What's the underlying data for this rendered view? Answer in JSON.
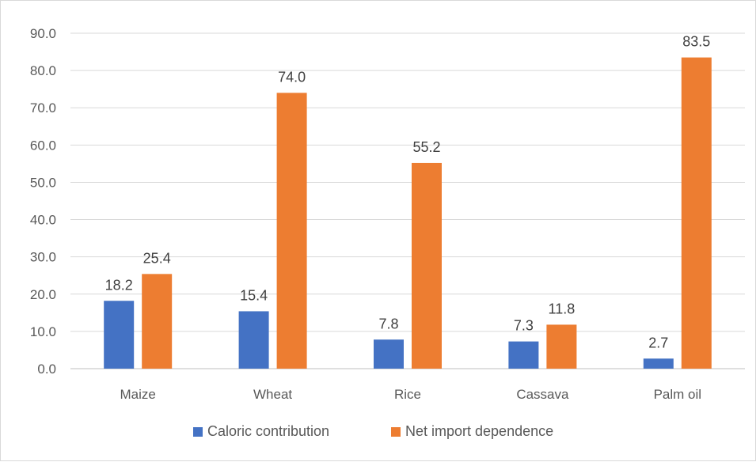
{
  "chart_data": {
    "type": "bar",
    "title": "",
    "xlabel": "",
    "ylabel": "",
    "categories": [
      "Maize",
      "Wheat",
      "Rice",
      "Cassava",
      "Palm oil"
    ],
    "series": [
      {
        "name": "Caloric contribution",
        "color": "#4472c4",
        "values": [
          18.2,
          15.4,
          7.8,
          7.3,
          2.7
        ]
      },
      {
        "name": "Net import dependence",
        "color": "#ed7d31",
        "values": [
          25.4,
          74.0,
          55.2,
          11.8,
          83.5
        ]
      }
    ],
    "ylim": [
      0,
      90
    ],
    "yticks": [
      "0.0",
      "10.0",
      "20.0",
      "30.0",
      "40.0",
      "50.0",
      "60.0",
      "70.0",
      "80.0",
      "90.0"
    ],
    "grid": true,
    "legend_position": "bottom",
    "data_labels": true
  }
}
